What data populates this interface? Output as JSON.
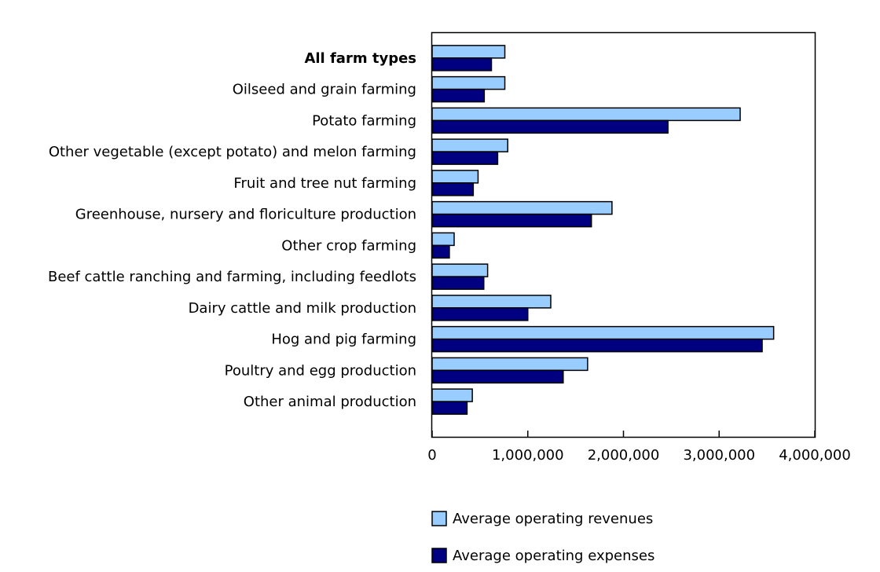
{
  "chart_data": {
    "type": "bar",
    "orientation": "horizontal",
    "categories": [
      "All farm types",
      "Oilseed and grain farming",
      "Potato farming",
      "Other vegetable (except potato) and melon farming",
      "Fruit and tree nut farming",
      "Greenhouse, nursery and floriculture production",
      "Other crop farming",
      "Beef cattle ranching and farming, including feedlots",
      "Dairy cattle and milk production",
      "Hog and pig farming",
      "Poultry and egg production",
      "Other animal production"
    ],
    "bold_categories": [
      "All farm types"
    ],
    "series": [
      {
        "name": "Average operating revenues",
        "color": "#99ccff",
        "values": [
          760000,
          760000,
          3220000,
          790000,
          480000,
          1880000,
          230000,
          580000,
          1240000,
          3570000,
          1625000,
          420000
        ]
      },
      {
        "name": "Average operating expenses",
        "color": "#000080",
        "values": [
          620000,
          545000,
          2465000,
          685000,
          430000,
          1665000,
          180000,
          540000,
          1000000,
          3450000,
          1370000,
          365000
        ]
      }
    ],
    "xlim": [
      0,
      4000000
    ],
    "xticks": [
      0,
      1000000,
      2000000,
      3000000,
      4000000
    ],
    "xtick_labels": [
      "0",
      "1,000,000",
      "2,000,000",
      "3,000,000",
      "4,000,000"
    ],
    "title": "",
    "xlabel": "",
    "ylabel": "",
    "grid": false,
    "legend_position": "bottom"
  }
}
